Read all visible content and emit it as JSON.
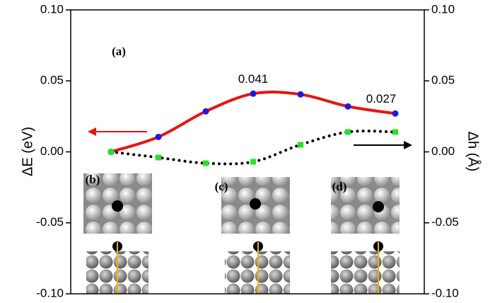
{
  "chart_data": {
    "type": "line",
    "categories": [
      null,
      null,
      null,
      null,
      null,
      null,
      null
    ],
    "series": [
      {
        "name": null,
        "color": "#e8140f",
        "marker_color": "#1a1ae6",
        "axis": "y",
        "values": [
          0,
          0.0105,
          0.0285,
          0.041,
          0.0405,
          0.032,
          0.027
        ],
        "value_labels": [
          null,
          null,
          null,
          "0.041",
          null,
          null,
          "0.027"
        ]
      },
      {
        "name": null,
        "color": "#000000",
        "marker_color": "#22e622",
        "axis": "y2",
        "values": [
          0,
          -0.004,
          -0.008,
          -0.007,
          0.005,
          0.014,
          0.014
        ]
      }
    ],
    "ylabel": "ΔE (eV)",
    "y2label": "Δh (Å)",
    "ylim": [
      -0.1,
      0.1
    ],
    "yticks": [
      {
        "value": -0.1,
        "label": "-0.10"
      },
      {
        "value": -0.05,
        "label": "-0.05"
      },
      {
        "value": 0,
        "label": "0.00"
      },
      {
        "value": 0.05,
        "label": "0.05"
      },
      {
        "value": 0.1,
        "label": "0.10"
      }
    ],
    "y2lim": [
      -0.1,
      0.1
    ],
    "y2ticks": [
      {
        "value": -0.1,
        "label": "-0.10"
      },
      {
        "value": -0.05,
        "label": "-0.05"
      },
      {
        "value": 0,
        "label": "0.00"
      },
      {
        "value": 0.05,
        "label": "0.05"
      },
      {
        "value": 0.1,
        "label": "0.10"
      }
    ],
    "annotations": [
      "(a)",
      "(b)",
      "(c)",
      "(d)"
    ]
  }
}
